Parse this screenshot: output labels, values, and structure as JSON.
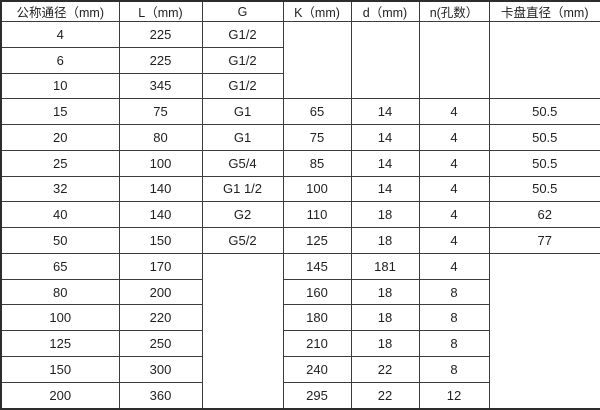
{
  "table": {
    "columns": [
      {
        "label": "公称通径（mm)"
      },
      {
        "label": "L（mm)"
      },
      {
        "label": "G"
      },
      {
        "label": "K（mm)"
      },
      {
        "label": "d（mm)"
      },
      {
        "label": "n(孔数）"
      },
      {
        "label": "卡盘直径（mm)"
      }
    ],
    "rows": [
      {
        "cells": [
          {
            "v": "4"
          },
          {
            "v": "225"
          },
          {
            "v": "G1/2"
          },
          {
            "v": "",
            "rowspan": 3
          },
          {
            "v": "",
            "rowspan": 3
          },
          {
            "v": "",
            "rowspan": 3
          },
          {
            "v": "",
            "rowspan": 3
          }
        ]
      },
      {
        "cells": [
          {
            "v": "6"
          },
          {
            "v": "225"
          },
          {
            "v": "G1/2"
          }
        ]
      },
      {
        "cells": [
          {
            "v": "10"
          },
          {
            "v": "345"
          },
          {
            "v": "G1/2"
          }
        ]
      },
      {
        "cells": [
          {
            "v": "15"
          },
          {
            "v": "75"
          },
          {
            "v": "G1"
          },
          {
            "v": "65"
          },
          {
            "v": "14"
          },
          {
            "v": "4"
          },
          {
            "v": "50.5"
          }
        ]
      },
      {
        "cells": [
          {
            "v": "20"
          },
          {
            "v": "80"
          },
          {
            "v": "G1"
          },
          {
            "v": "75"
          },
          {
            "v": "14"
          },
          {
            "v": "4"
          },
          {
            "v": "50.5"
          }
        ]
      },
      {
        "cells": [
          {
            "v": "25"
          },
          {
            "v": "100"
          },
          {
            "v": "G5/4"
          },
          {
            "v": "85"
          },
          {
            "v": "14"
          },
          {
            "v": "4"
          },
          {
            "v": "50.5"
          }
        ]
      },
      {
        "cells": [
          {
            "v": "32"
          },
          {
            "v": "140"
          },
          {
            "v": "G1 1/2"
          },
          {
            "v": "100"
          },
          {
            "v": "14"
          },
          {
            "v": "4"
          },
          {
            "v": "50.5"
          }
        ]
      },
      {
        "cells": [
          {
            "v": "40"
          },
          {
            "v": "140"
          },
          {
            "v": "G2"
          },
          {
            "v": "110"
          },
          {
            "v": "18"
          },
          {
            "v": "4"
          },
          {
            "v": "62"
          }
        ]
      },
      {
        "cells": [
          {
            "v": "50"
          },
          {
            "v": "150"
          },
          {
            "v": "G5/2"
          },
          {
            "v": "125"
          },
          {
            "v": "18"
          },
          {
            "v": "4"
          },
          {
            "v": "77"
          }
        ]
      },
      {
        "cells": [
          {
            "v": "65"
          },
          {
            "v": "170"
          },
          {
            "v": "",
            "rowspan": 6
          },
          {
            "v": "145"
          },
          {
            "v": "181"
          },
          {
            "v": "4"
          },
          {
            "v": "",
            "rowspan": 6
          }
        ]
      },
      {
        "cells": [
          {
            "v": "80"
          },
          {
            "v": "200"
          },
          {
            "v": "160"
          },
          {
            "v": "18"
          },
          {
            "v": "8"
          }
        ]
      },
      {
        "cells": [
          {
            "v": "100"
          },
          {
            "v": "220"
          },
          {
            "v": "180"
          },
          {
            "v": "18"
          },
          {
            "v": "8"
          }
        ]
      },
      {
        "cells": [
          {
            "v": "125"
          },
          {
            "v": "250"
          },
          {
            "v": "210"
          },
          {
            "v": "18"
          },
          {
            "v": "8"
          }
        ]
      },
      {
        "cells": [
          {
            "v": "150"
          },
          {
            "v": "300"
          },
          {
            "v": "240"
          },
          {
            "v": "22"
          },
          {
            "v": "8"
          }
        ]
      },
      {
        "cells": [
          {
            "v": "200"
          },
          {
            "v": "360"
          },
          {
            "v": "295"
          },
          {
            "v": "22"
          },
          {
            "v": "12"
          }
        ]
      }
    ]
  },
  "colors": {
    "border": "#3c3c3c",
    "outer_border": "#2d2d2d",
    "text": "#1f1f1f",
    "background": "#ffffff"
  }
}
